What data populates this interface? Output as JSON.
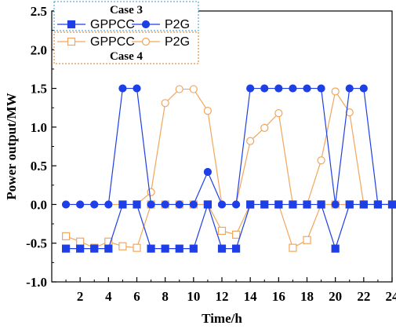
{
  "chart_data": {
    "type": "line",
    "xlabel": "Time/h",
    "ylabel": "Power output/MW",
    "x": [
      1,
      2,
      3,
      4,
      5,
      6,
      7,
      8,
      9,
      10,
      11,
      12,
      13,
      14,
      15,
      16,
      17,
      18,
      19,
      20,
      21,
      22,
      23,
      24
    ],
    "xlim": [
      0,
      24
    ],
    "ylim": [
      -1.0,
      2.5
    ],
    "x_ticks": [
      "2",
      "4",
      "6",
      "8",
      "10",
      "12",
      "14",
      "16",
      "18",
      "20",
      "22",
      "24"
    ],
    "y_ticks": [
      "-1.0",
      "-0.5",
      "0.0",
      "0.5",
      "1.0",
      "1.5",
      "2.0",
      "2.5"
    ],
    "grid": false,
    "legend": {
      "groups": [
        {
          "title": "Case 3",
          "title_position": "top",
          "box_color": "#3399cc",
          "entries": [
            {
              "label": "GPPCC",
              "series": 0
            },
            {
              "label": "P2G",
              "series": 1
            }
          ]
        },
        {
          "title": "Case 4",
          "title_position": "bottom",
          "box_color": "#e07a1f",
          "entries": [
            {
              "label": "GPPCC",
              "series": 2
            },
            {
              "label": "P2G",
              "series": 3
            }
          ]
        }
      ],
      "placement": "top-left"
    },
    "series": [
      {
        "name": "GPPCC",
        "case": "Case 3",
        "color": "#1f3fe6",
        "marker": "square",
        "filled": true,
        "values": [
          -0.57,
          -0.57,
          -0.57,
          -0.57,
          0,
          0,
          -0.57,
          -0.57,
          -0.57,
          -0.57,
          0,
          -0.57,
          -0.57,
          0,
          0,
          0,
          0,
          0,
          0,
          -0.57,
          0,
          0,
          0,
          0
        ]
      },
      {
        "name": "P2G",
        "case": "Case 3",
        "color": "#1f3fe6",
        "marker": "circle",
        "filled": true,
        "values": [
          0,
          0,
          0,
          0,
          1.5,
          1.5,
          0,
          0,
          0,
          0,
          0.42,
          0,
          0,
          1.5,
          1.5,
          1.5,
          1.5,
          1.5,
          1.5,
          0,
          1.5,
          1.5,
          0,
          0
        ]
      },
      {
        "name": "GPPCC",
        "case": "Case 4",
        "color": "#f2a65a",
        "marker": "square",
        "filled": false,
        "values": [
          -0.41,
          -0.48,
          -0.56,
          -0.48,
          -0.54,
          -0.56,
          0,
          0,
          0,
          0,
          0,
          -0.34,
          -0.39,
          0,
          0,
          0,
          -0.56,
          -0.46,
          0,
          0,
          0,
          0,
          0,
          0
        ]
      },
      {
        "name": "P2G",
        "case": "Case 4",
        "color": "#f2a65a",
        "marker": "circle",
        "filled": false,
        "values": [
          0,
          0,
          0,
          0,
          0,
          0,
          0.16,
          1.31,
          1.49,
          1.49,
          1.21,
          0,
          0,
          0.82,
          0.99,
          1.18,
          0,
          0,
          0.57,
          1.46,
          1.19,
          0,
          0,
          0
        ]
      }
    ]
  }
}
